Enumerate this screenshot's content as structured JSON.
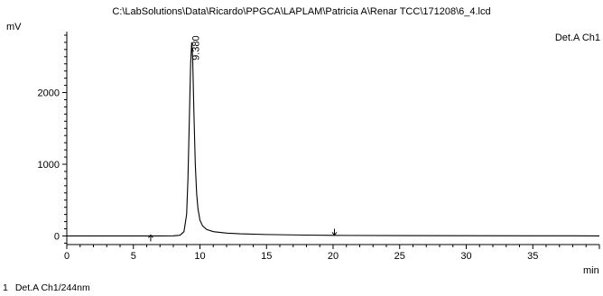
{
  "window": {
    "title": "C:\\LabSolutions\\Data\\Ricardo\\PPGCA\\LAPLAM\\Patricia A\\Renar TCC\\171208\\6_4.lcd"
  },
  "chart_data": {
    "type": "line",
    "title": "C:\\LabSolutions\\Data\\Ricardo\\PPGCA\\LAPLAM\\Patricia A\\Renar TCC\\171208\\6_4.lcd",
    "xlabel": "min",
    "ylabel": "mV",
    "xlim": [
      0,
      40
    ],
    "ylim": [
      -120,
      2850
    ],
    "xticks": [
      0,
      5,
      10,
      15,
      20,
      25,
      30,
      35
    ],
    "yticks": [
      0,
      1000,
      2000
    ],
    "grid": false,
    "legend": "top-right",
    "series": [
      {
        "name": "Det.A Ch1",
        "color": "#000000",
        "x": [
          0,
          2,
          4,
          6,
          7,
          8,
          8.5,
          8.8,
          9.0,
          9.1,
          9.2,
          9.3,
          9.38,
          9.45,
          9.55,
          9.65,
          9.75,
          9.85,
          10.0,
          10.2,
          10.5,
          11.0,
          12.0,
          13.0,
          15.0,
          18.0,
          20.0,
          25.0,
          30.0,
          35.0,
          40.0
        ],
        "y": [
          0,
          0,
          0,
          0,
          1,
          2,
          10,
          60,
          300,
          800,
          1600,
          2400,
          2700,
          2500,
          1700,
          1000,
          600,
          380,
          220,
          140,
          90,
          60,
          40,
          30,
          20,
          12,
          8,
          5,
          3,
          2,
          1
        ]
      }
    ],
    "peaks": [
      {
        "label": "9.380",
        "x": 9.38,
        "y": 2700
      }
    ],
    "markers": [
      {
        "x": 6.3,
        "direction": "up"
      },
      {
        "x": 20.1,
        "direction": "down"
      }
    ]
  },
  "footer": {
    "peak_table": [
      {
        "index": "1",
        "label": "Det.A Ch1/244nm"
      }
    ]
  }
}
